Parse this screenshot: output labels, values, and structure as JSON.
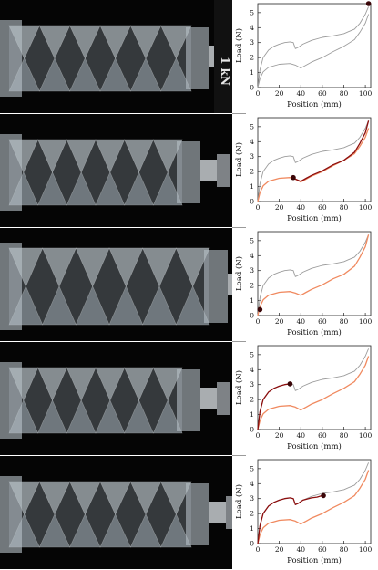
{
  "colors": {
    "gray_curve": "#9c9c9c",
    "loading_curve": "#f08a60",
    "unloading_curve": "#8b0e0e",
    "marker": "#3a0608",
    "background_photo": "#050505"
  },
  "photo_labels": {
    "load_cell": "1 kN"
  },
  "chart_data": [
    {
      "type": "line",
      "xlabel": "Position (mm)",
      "ylabel": "Load (N)",
      "xlim": [
        0,
        105
      ],
      "ylim": [
        0,
        5.6
      ],
      "xticks": [
        "0",
        "20",
        "40",
        "60",
        "80",
        "100"
      ],
      "yticks": [
        "0",
        "1",
        "2",
        "3",
        "4",
        "5"
      ],
      "grid": false,
      "series": [
        {
          "x": [
            0,
            2,
            5,
            10,
            15,
            20,
            25,
            30,
            33,
            35,
            38,
            42,
            50,
            60,
            70,
            80,
            90,
            95,
            100,
            103
          ],
          "y": [
            0,
            1.2,
            2.0,
            2.5,
            2.75,
            2.9,
            3.0,
            3.05,
            3.0,
            2.6,
            2.7,
            2.9,
            3.15,
            3.35,
            3.45,
            3.6,
            3.9,
            4.3,
            4.9,
            5.4
          ]
        },
        {
          "x": [
            0,
            2,
            5,
            10,
            20,
            30,
            35,
            40,
            45,
            50,
            60,
            70,
            80,
            90,
            95,
            100,
            103
          ],
          "y": [
            0,
            0.6,
            1.05,
            1.35,
            1.55,
            1.6,
            1.5,
            1.3,
            1.5,
            1.7,
            2.0,
            2.4,
            2.75,
            3.2,
            3.7,
            4.3,
            4.9
          ]
        }
      ],
      "marker": {
        "x": 103,
        "y": 5.6
      }
    },
    {
      "type": "line",
      "xlabel": "Position (mm)",
      "ylabel": "Load (N)",
      "xlim": [
        0,
        105
      ],
      "ylim": [
        0,
        5.6
      ],
      "xticks": [
        "0",
        "20",
        "40",
        "60",
        "80",
        "100"
      ],
      "yticks": [
        "0",
        "1",
        "2",
        "3",
        "4",
        "5"
      ],
      "grid": false,
      "series": [
        {
          "x": [
            0,
            2,
            5,
            10,
            15,
            20,
            25,
            30,
            33,
            35,
            38,
            42,
            50,
            60,
            70,
            80,
            90,
            95,
            100,
            103
          ],
          "y": [
            0,
            1.2,
            2.0,
            2.5,
            2.75,
            2.9,
            3.0,
            3.05,
            3.0,
            2.6,
            2.7,
            2.9,
            3.15,
            3.35,
            3.45,
            3.6,
            3.9,
            4.3,
            4.9,
            5.4
          ]
        },
        {
          "x": [
            0,
            2,
            5,
            10,
            20,
            30,
            35,
            40,
            45,
            50,
            60,
            70,
            80,
            90,
            95,
            100,
            103
          ],
          "y": [
            0,
            0.6,
            1.05,
            1.35,
            1.55,
            1.6,
            1.5,
            1.3,
            1.5,
            1.7,
            2.0,
            2.4,
            2.75,
            3.2,
            3.7,
            4.3,
            4.9
          ]
        },
        {
          "x": [
            103,
            100,
            95,
            90,
            80,
            70,
            60,
            50,
            45,
            40,
            35,
            33
          ],
          "y": [
            5.4,
            4.6,
            3.9,
            3.3,
            2.75,
            2.45,
            2.05,
            1.75,
            1.55,
            1.35,
            1.5,
            1.6
          ]
        }
      ],
      "marker": {
        "x": 33,
        "y": 1.6
      }
    },
    {
      "type": "line",
      "xlabel": "Position (mm)",
      "ylabel": "Load (N)",
      "xlim": [
        0,
        105
      ],
      "ylim": [
        0,
        5.6
      ],
      "xticks": [
        "0",
        "20",
        "40",
        "60",
        "80",
        "100"
      ],
      "yticks": [
        "0",
        "1",
        "2",
        "3",
        "4",
        "5"
      ],
      "grid": false,
      "series": [
        {
          "x": [
            0,
            2,
            5,
            10,
            15,
            20,
            25,
            30,
            33,
            35,
            38,
            42,
            50,
            60,
            70,
            80,
            90,
            95,
            100,
            103
          ],
          "y": [
            0,
            1.2,
            2.0,
            2.5,
            2.75,
            2.9,
            3.0,
            3.05,
            3.0,
            2.6,
            2.7,
            2.9,
            3.15,
            3.35,
            3.45,
            3.6,
            3.9,
            4.3,
            4.9,
            5.4
          ]
        },
        {
          "x": [
            103,
            100,
            95,
            90,
            80,
            70,
            60,
            50,
            45,
            40,
            35,
            30,
            20,
            10,
            5,
            2,
            0
          ],
          "y": [
            5.4,
            4.6,
            3.9,
            3.3,
            2.75,
            2.45,
            2.05,
            1.75,
            1.55,
            1.35,
            1.5,
            1.6,
            1.55,
            1.35,
            1.05,
            0.6,
            0
          ]
        }
      ],
      "marker": {
        "x": 2,
        "y": 0.4
      }
    },
    {
      "type": "line",
      "xlabel": "Position (mm)",
      "ylabel": "Load (N)",
      "xlim": [
        0,
        105
      ],
      "ylim": [
        0,
        5.6
      ],
      "xticks": [
        "0",
        "20",
        "40",
        "60",
        "80",
        "100"
      ],
      "yticks": [
        "0",
        "1",
        "2",
        "3",
        "4",
        "5"
      ],
      "grid": false,
      "series": [
        {
          "x": [
            0,
            2,
            5,
            10,
            15,
            20,
            25,
            30,
            33,
            35,
            38,
            42,
            50,
            60,
            70,
            80,
            90,
            95,
            100,
            103
          ],
          "y": [
            0,
            1.2,
            2.0,
            2.5,
            2.75,
            2.9,
            3.0,
            3.05,
            3.0,
            2.6,
            2.7,
            2.9,
            3.15,
            3.35,
            3.45,
            3.6,
            3.9,
            4.3,
            4.9,
            5.4
          ]
        },
        {
          "x": [
            103,
            100,
            95,
            90,
            80,
            70,
            60,
            50,
            45,
            40,
            35,
            30,
            20,
            10,
            5,
            2,
            0
          ],
          "y": [
            4.9,
            4.3,
            3.7,
            3.2,
            2.75,
            2.4,
            2.0,
            1.7,
            1.5,
            1.3,
            1.5,
            1.6,
            1.55,
            1.35,
            1.05,
            0.6,
            0
          ]
        },
        {
          "x": [
            0,
            2,
            5,
            10,
            15,
            20,
            25,
            30
          ],
          "y": [
            0,
            1.2,
            2.0,
            2.5,
            2.75,
            2.9,
            3.0,
            3.05
          ]
        }
      ],
      "marker": {
        "x": 30,
        "y": 3.05
      }
    },
    {
      "type": "line",
      "xlabel": "Position (mm)",
      "ylabel": "Load (N)",
      "xlim": [
        0,
        105
      ],
      "ylim": [
        0,
        5.6
      ],
      "xticks": [
        "0",
        "20",
        "40",
        "60",
        "80",
        "100"
      ],
      "yticks": [
        "0",
        "1",
        "2",
        "3",
        "4",
        "5"
      ],
      "grid": false,
      "series": [
        {
          "x": [
            0,
            2,
            5,
            10,
            15,
            20,
            25,
            30,
            33,
            35,
            38,
            42,
            50,
            60,
            70,
            80,
            90,
            95,
            100,
            103
          ],
          "y": [
            0,
            1.2,
            2.0,
            2.5,
            2.75,
            2.9,
            3.0,
            3.05,
            3.0,
            2.6,
            2.7,
            2.9,
            3.15,
            3.35,
            3.45,
            3.6,
            3.9,
            4.3,
            4.9,
            5.4
          ]
        },
        {
          "x": [
            103,
            100,
            95,
            90,
            80,
            70,
            60,
            50,
            45,
            40,
            35,
            30,
            20,
            10,
            5,
            2,
            0
          ],
          "y": [
            4.9,
            4.3,
            3.7,
            3.2,
            2.75,
            2.4,
            2.0,
            1.7,
            1.5,
            1.3,
            1.5,
            1.6,
            1.55,
            1.35,
            1.05,
            0.6,
            0
          ]
        },
        {
          "x": [
            0,
            2,
            5,
            10,
            15,
            20,
            25,
            30,
            33,
            35,
            38,
            42,
            50,
            55,
            60
          ],
          "y": [
            0,
            1.2,
            2.0,
            2.5,
            2.75,
            2.9,
            3.0,
            3.05,
            3.0,
            2.6,
            2.7,
            2.9,
            3.05,
            3.1,
            3.2
          ]
        }
      ],
      "marker": {
        "x": 61,
        "y": 3.2
      }
    }
  ]
}
